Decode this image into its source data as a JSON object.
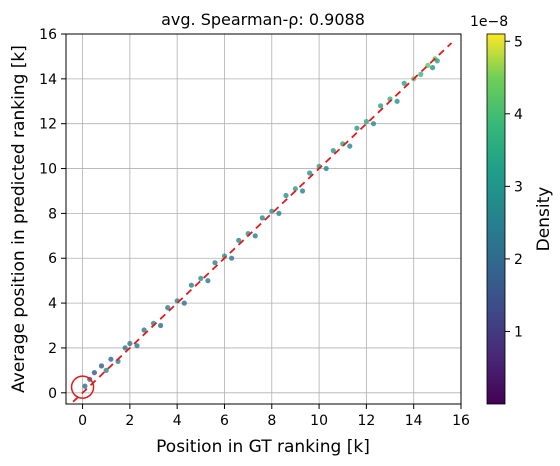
{
  "chart_data": {
    "type": "scatter",
    "title": "avg. Spearman-ρ: 0.9088",
    "xlabel": "Position in GT ranking [k]",
    "ylabel": "Average position in predicted ranking [k]",
    "xlim": [
      -0.7,
      16
    ],
    "ylim": [
      -0.5,
      16
    ],
    "xticks": [
      0,
      2,
      4,
      6,
      8,
      10,
      12,
      14,
      16
    ],
    "yticks": [
      0,
      2,
      4,
      6,
      8,
      10,
      12,
      14,
      16
    ],
    "grid": true,
    "reference_line": {
      "from": [
        -0.4,
        -0.4
      ],
      "to": [
        15.6,
        15.6
      ],
      "color": "#e31a1c",
      "style": "dashed"
    },
    "highlight_circle": {
      "center": [
        0,
        0.25
      ],
      "color": "#e31a1c"
    },
    "colorbar": {
      "label": "Density",
      "multiplier": "1e−8",
      "range": [
        0,
        5.1
      ],
      "ticks": [
        1,
        2,
        3,
        4,
        5
      ],
      "colormap": "viridis"
    },
    "series": [
      {
        "marker": "dot",
        "points_description_note": null,
        "points": [
          [
            0.1,
            0.3
          ],
          [
            0.3,
            0.6
          ],
          [
            0.5,
            0.9
          ],
          [
            0.8,
            1.2
          ],
          [
            1.0,
            1.0
          ],
          [
            1.2,
            1.5
          ],
          [
            1.5,
            1.4
          ],
          [
            1.8,
            2.0
          ],
          [
            2.0,
            2.2
          ],
          [
            2.3,
            2.1
          ],
          [
            2.6,
            2.8
          ],
          [
            3.0,
            3.1
          ],
          [
            3.3,
            3.0
          ],
          [
            3.6,
            3.8
          ],
          [
            4.0,
            4.1
          ],
          [
            4.3,
            4.0
          ],
          [
            4.6,
            4.8
          ],
          [
            5.0,
            5.1
          ],
          [
            5.3,
            5.0
          ],
          [
            5.6,
            5.8
          ],
          [
            6.0,
            6.1
          ],
          [
            6.3,
            6.0
          ],
          [
            6.6,
            6.8
          ],
          [
            7.0,
            7.1
          ],
          [
            7.3,
            7.0
          ],
          [
            7.6,
            7.8
          ],
          [
            8.0,
            8.1
          ],
          [
            8.3,
            8.0
          ],
          [
            8.6,
            8.8
          ],
          [
            9.0,
            9.1
          ],
          [
            9.3,
            9.0
          ],
          [
            9.6,
            9.8
          ],
          [
            10.0,
            10.1
          ],
          [
            10.3,
            10.0
          ],
          [
            10.6,
            10.8
          ],
          [
            11.0,
            11.1
          ],
          [
            11.3,
            11.0
          ],
          [
            11.6,
            11.8
          ],
          [
            12.0,
            12.1
          ],
          [
            12.3,
            12.0
          ],
          [
            12.6,
            12.8
          ],
          [
            13.0,
            13.1
          ],
          [
            13.3,
            13.0
          ],
          [
            13.6,
            13.8
          ],
          [
            14.0,
            14.0
          ],
          [
            14.3,
            14.2
          ],
          [
            14.6,
            14.6
          ],
          [
            14.9,
            14.9
          ],
          [
            15.0,
            14.8
          ],
          [
            14.8,
            14.5
          ]
        ]
      }
    ]
  }
}
